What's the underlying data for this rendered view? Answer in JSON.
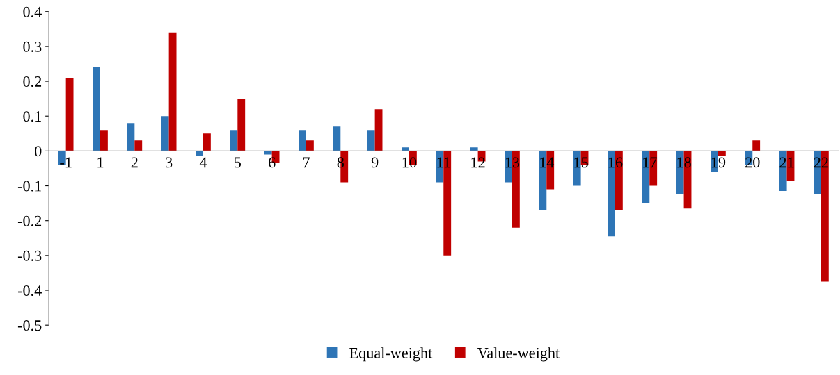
{
  "chart_data": {
    "type": "bar",
    "categories": [
      "-1",
      "1",
      "2",
      "3",
      "4",
      "5",
      "6",
      "7",
      "8",
      "9",
      "10",
      "11",
      "12",
      "13",
      "14",
      "15",
      "16",
      "17",
      "18",
      "19",
      "20",
      "21",
      "22"
    ],
    "series": [
      {
        "name": "Equal-weight",
        "color": "#2e75b6",
        "values": [
          -0.04,
          0.24,
          0.08,
          0.1,
          -0.015,
          0.06,
          -0.01,
          0.06,
          0.07,
          0.06,
          0.01,
          -0.09,
          0.01,
          -0.09,
          -0.17,
          -0.1,
          -0.245,
          -0.15,
          -0.125,
          -0.06,
          -0.04,
          -0.115,
          -0.125
        ]
      },
      {
        "name": "Value-weight",
        "color": "#c00000",
        "values": [
          0.21,
          0.06,
          0.03,
          0.34,
          0.05,
          0.15,
          -0.035,
          0.03,
          -0.09,
          0.12,
          -0.04,
          -0.3,
          -0.03,
          -0.22,
          -0.11,
          -0.04,
          -0.17,
          -0.1,
          -0.165,
          -0.015,
          0.03,
          -0.085,
          -0.375
        ]
      }
    ],
    "ylim": [
      -0.5,
      0.4
    ],
    "yticks": [
      -0.5,
      -0.4,
      -0.3,
      -0.2,
      -0.1,
      0,
      0.1,
      0.2,
      0.3,
      0.4
    ],
    "grid": false,
    "legend": "bottom"
  }
}
